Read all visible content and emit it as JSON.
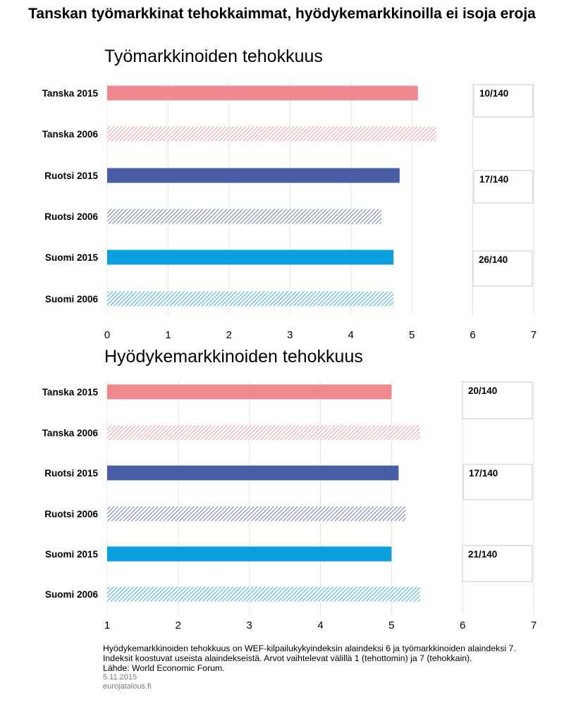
{
  "page_title": "Tanskan työmarkkinat tehokkaimmat, hyödykemarkkinoilla ei isoja eroja",
  "chart_data": [
    {
      "type": "bar",
      "orientation": "horizontal",
      "title": "Työmarkkinoiden tehokkuus",
      "categories": [
        "Tanska 2015",
        "Tanska 2006",
        "Ruotsi 2015",
        "Ruotsi 2006",
        "Suomi 2015",
        "Suomi 2006"
      ],
      "values": [
        5.1,
        5.4,
        4.8,
        4.5,
        4.7,
        4.7
      ],
      "xlim": [
        0,
        7
      ],
      "xticks": [
        0,
        1,
        2,
        3,
        4,
        5,
        6,
        7
      ],
      "grid": true,
      "rank_labels": [
        "10/140",
        "17/140",
        "26/140"
      ]
    },
    {
      "type": "bar",
      "orientation": "horizontal",
      "title": "Hyödykemarkkinoiden tehokkuus",
      "categories": [
        "Tanska 2015",
        "Tanska 2006",
        "Ruotsi 2015",
        "Ruotsi 2006",
        "Suomi 2015",
        "Suomi 2006"
      ],
      "values": [
        5.0,
        5.4,
        5.1,
        5.2,
        5.0,
        5.4
      ],
      "xlim": [
        1,
        7
      ],
      "xticks": [
        1,
        2,
        3,
        4,
        5,
        6,
        7
      ],
      "grid": true,
      "rank_labels": [
        "20/140",
        "17/140",
        "21/140"
      ]
    }
  ],
  "colors": {
    "tanska": "#f0898e",
    "ruotsi": "#4a5ea8",
    "suomi": "#0aa0e0",
    "grid": "#e3e3e3"
  },
  "footer": {
    "line1": "Hyödykemarkkinoiden tehokkuus on WEF-kilpailukykyindeksin alaindeksi 6 ja työmarkkinoiden alaindeksi 7.",
    "line2": "Indeksit koostuvat useista alaindekseistä. Arvot vaihtelevat välillä 1 (tehottomin) ja 7 (tehokkain).",
    "source": "Lähde: World Economic Forum.",
    "date": "5.11.2015",
    "site": "eurojatalous.fi"
  }
}
